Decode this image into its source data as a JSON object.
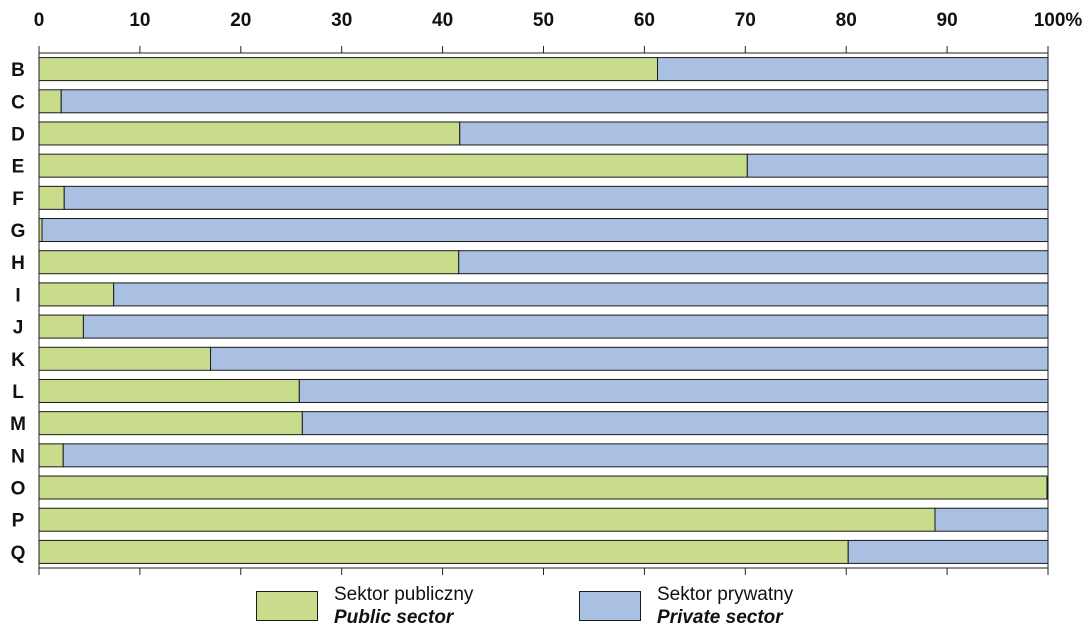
{
  "chart_data": {
    "type": "bar",
    "orientation": "horizontal",
    "stacked": true,
    "percent_scale": true,
    "categories": [
      "B",
      "C",
      "D",
      "E",
      "F",
      "G",
      "H",
      "I",
      "J",
      "K",
      "L",
      "M",
      "N",
      "O",
      "P",
      "Q"
    ],
    "series": [
      {
        "name": "Sektor publiczny",
        "name_en": "Public sector",
        "color": "#c8dc8c",
        "values": [
          61.3,
          2.2,
          41.7,
          70.2,
          2.5,
          0.3,
          41.6,
          7.4,
          4.4,
          17.0,
          25.8,
          26.1,
          2.4,
          99.9,
          88.8,
          80.2
        ]
      },
      {
        "name": "Sektor prywatny",
        "name_en": "Private sector",
        "color": "#a9c0e3",
        "values": [
          38.7,
          97.8,
          58.3,
          29.8,
          97.5,
          99.7,
          58.4,
          92.6,
          95.6,
          83.0,
          74.2,
          73.9,
          97.6,
          0.1,
          11.2,
          19.8
        ]
      }
    ],
    "xticks": [
      "0",
      "10",
      "20",
      "30",
      "40",
      "50",
      "60",
      "70",
      "80",
      "90",
      "100%"
    ],
    "xlim": [
      0,
      100
    ],
    "axis_position": "top",
    "grid": true,
    "legend_position": "bottom"
  }
}
